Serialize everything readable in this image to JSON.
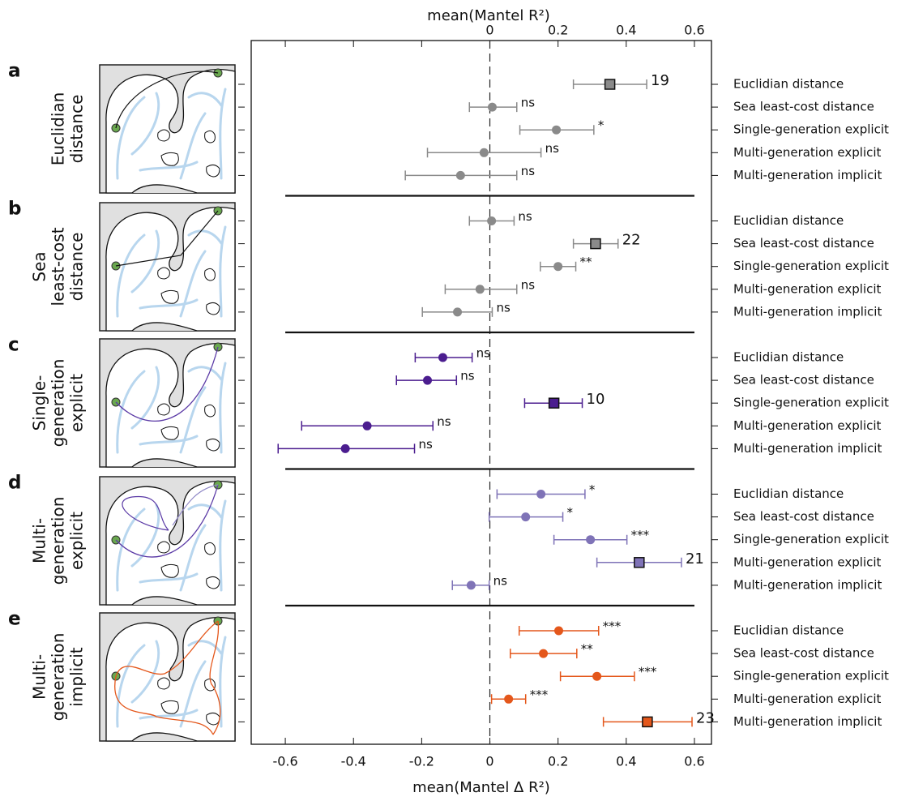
{
  "chart_data": {
    "type": "errorbar",
    "x_label": "mean(Mantel Δ R²)",
    "x2_label": "mean(Mantel R²)",
    "xlim": [
      -0.7,
      0.65
    ],
    "xticks": [
      -0.6,
      -0.4,
      -0.2,
      0,
      0.2,
      0.4,
      0.6
    ],
    "x2ticks": [
      0,
      0.2,
      0.4,
      0.6
    ],
    "categories": [
      "Euclidian distance",
      "Sea least-cost distance",
      "Single-generation explicit",
      "Multi-generation explicit",
      "Multi-generation implicit"
    ],
    "panels": [
      {
        "letter": "a",
        "title": [
          "Euclidian",
          "distance"
        ],
        "color": "#8a8a8a",
        "markers": [
          "square",
          "circle",
          "circle",
          "circle",
          "circle"
        ],
        "values": [
          0.352,
          0.007,
          0.195,
          -0.017,
          -0.086
        ],
        "lower": [
          0.245,
          -0.06,
          0.088,
          -0.183,
          -0.248
        ],
        "upper": [
          0.46,
          0.079,
          0.305,
          0.15,
          0.079
        ],
        "annotations": [
          "19",
          "ns",
          "*",
          "ns",
          "ns"
        ]
      },
      {
        "letter": "b",
        "title": [
          "Sea",
          "least-cost",
          "distance"
        ],
        "color": "#8a8a8a",
        "markers": [
          "circle",
          "square",
          "circle",
          "circle",
          "circle"
        ],
        "values": [
          0.005,
          0.31,
          0.2,
          -0.029,
          -0.095
        ],
        "lower": [
          -0.06,
          0.245,
          0.148,
          -0.131,
          -0.198
        ],
        "upper": [
          0.071,
          0.376,
          0.252,
          0.079,
          0.007
        ],
        "annotations": [
          "ns",
          "22",
          "**",
          "ns",
          "ns"
        ]
      },
      {
        "letter": "c",
        "title": [
          "Single-",
          "generation",
          "explicit"
        ],
        "color": "#4b1d8f",
        "markers": [
          "circle",
          "circle",
          "square",
          "circle",
          "circle"
        ],
        "values": [
          -0.138,
          -0.183,
          0.188,
          -0.36,
          -0.424
        ],
        "lower": [
          -0.219,
          -0.274,
          0.102,
          -0.552,
          -0.621
        ],
        "upper": [
          -0.052,
          -0.098,
          0.271,
          -0.167,
          -0.221
        ],
        "annotations": [
          "ns",
          "ns",
          "10",
          "ns",
          "ns"
        ]
      },
      {
        "letter": "d",
        "title": [
          "Multi-",
          "generation",
          "explicit"
        ],
        "color": "#7f73b7",
        "markers": [
          "circle",
          "circle",
          "circle",
          "square",
          "circle"
        ],
        "values": [
          0.15,
          0.105,
          0.295,
          0.438,
          -0.055
        ],
        "lower": [
          0.021,
          -0.002,
          0.188,
          0.314,
          -0.11
        ],
        "upper": [
          0.279,
          0.214,
          0.402,
          0.562,
          -0.002
        ],
        "annotations": [
          "*",
          "*",
          "***",
          "21",
          "ns"
        ]
      },
      {
        "letter": "e",
        "title": [
          "Multi-",
          "generation",
          "implicit"
        ],
        "color": "#e4571b",
        "markers": [
          "circle",
          "circle",
          "circle",
          "circle",
          "square"
        ],
        "values": [
          0.202,
          0.157,
          0.314,
          0.055,
          0.462
        ],
        "lower": [
          0.086,
          0.06,
          0.207,
          0.005,
          0.333
        ],
        "upper": [
          0.319,
          0.255,
          0.424,
          0.105,
          0.593
        ],
        "annotations": [
          "***",
          "**",
          "***",
          "***",
          "23"
        ]
      }
    ]
  }
}
